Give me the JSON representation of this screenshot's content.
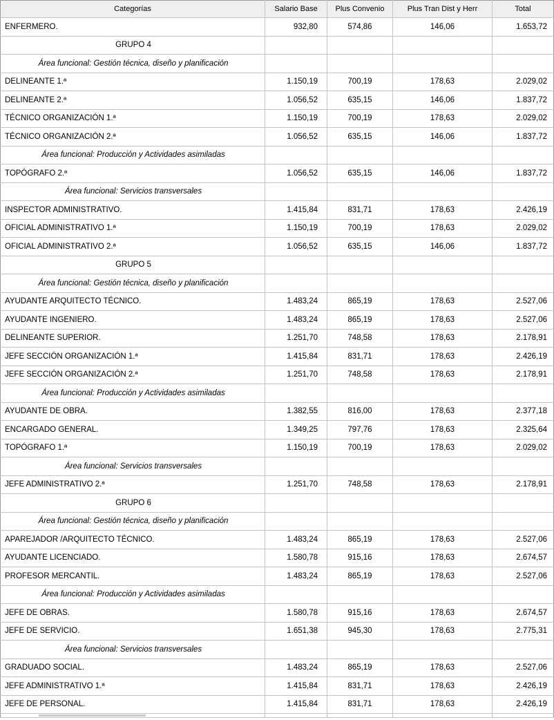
{
  "table": {
    "columns": [
      {
        "key": "category",
        "label": "Categorías"
      },
      {
        "key": "salario_base",
        "label": "Salario Base"
      },
      {
        "key": "plus_convenio",
        "label": "Plus Convenio"
      },
      {
        "key": "plus_tran",
        "label": "Plus Tran Dist y Herr"
      },
      {
        "key": "total",
        "label": "Total"
      }
    ],
    "rows": [
      {
        "type": "data",
        "category": "ENFERMERO.",
        "salario_base": "932,80",
        "plus_convenio": "574,86",
        "plus_tran": "146,06",
        "total": "1.653,72"
      },
      {
        "type": "group",
        "label": "GRUPO 4"
      },
      {
        "type": "area",
        "label": "Área funcional: Gestión técnica, diseño y planificación"
      },
      {
        "type": "data",
        "category": "DELINEANTE 1.ª",
        "salario_base": "1.150,19",
        "plus_convenio": "700,19",
        "plus_tran": "178,63",
        "total": "2.029,02"
      },
      {
        "type": "data",
        "category": "DELINEANTE 2.ª",
        "salario_base": "1.056,52",
        "plus_convenio": "635,15",
        "plus_tran": "146,06",
        "total": "1.837,72"
      },
      {
        "type": "data",
        "category": "TÉCNICO ORGANIZACIÓN 1.ª",
        "salario_base": "1.150,19",
        "plus_convenio": "700,19",
        "plus_tran": "178,63",
        "total": "2.029,02"
      },
      {
        "type": "data",
        "category": "TÉCNICO ORGANIZACIÓN 2.ª",
        "salario_base": "1.056,52",
        "plus_convenio": "635,15",
        "plus_tran": "146,06",
        "total": "1.837,72"
      },
      {
        "type": "area",
        "label": "Área funcional: Producción y Actividades asimiladas"
      },
      {
        "type": "data",
        "category": "TOPÓGRAFO 2.ª",
        "salario_base": "1.056,52",
        "plus_convenio": "635,15",
        "plus_tran": "146,06",
        "total": "1.837,72"
      },
      {
        "type": "area",
        "label": "Área funcional: Servicios transversales"
      },
      {
        "type": "data",
        "category": "INSPECTOR ADMINISTRATIVO.",
        "salario_base": "1.415,84",
        "plus_convenio": "831,71",
        "plus_tran": "178,63",
        "total": "2.426,19"
      },
      {
        "type": "data",
        "category": "OFICIAL ADMINISTRATIVO 1.ª",
        "salario_base": "1.150,19",
        "plus_convenio": "700,19",
        "plus_tran": "178,63",
        "total": "2.029,02"
      },
      {
        "type": "data",
        "category": "OFICIAL ADMINISTRATIVO 2.ª",
        "salario_base": "1.056,52",
        "plus_convenio": "635,15",
        "plus_tran": "146,06",
        "total": "1.837,72"
      },
      {
        "type": "group",
        "label": "GRUPO 5"
      },
      {
        "type": "area",
        "label": "Área funcional: Gestión técnica, diseño y planificación"
      },
      {
        "type": "data",
        "category": "AYUDANTE ARQUITECTO TÉCNICO.",
        "salario_base": "1.483,24",
        "plus_convenio": "865,19",
        "plus_tran": "178,63",
        "total": "2.527,06"
      },
      {
        "type": "data",
        "category": "AYUDANTE INGENIERO.",
        "salario_base": "1.483,24",
        "plus_convenio": "865,19",
        "plus_tran": "178,63",
        "total": "2.527,06"
      },
      {
        "type": "data",
        "category": "DELINEANTE SUPERIOR.",
        "salario_base": "1.251,70",
        "plus_convenio": "748,58",
        "plus_tran": "178,63",
        "total": "2.178,91"
      },
      {
        "type": "data",
        "category": "JEFE SECCIÓN ORGANIZACIÓN 1.ª",
        "salario_base": "1.415,84",
        "plus_convenio": "831,71",
        "plus_tran": "178,63",
        "total": "2.426,19"
      },
      {
        "type": "data",
        "category": "JEFE SECCIÓN ORGANIZACIÓN 2.ª",
        "salario_base": "1.251,70",
        "plus_convenio": "748,58",
        "plus_tran": "178,63",
        "total": "2.178,91"
      },
      {
        "type": "area",
        "label": "Área funcional: Producción y Actividades asimiladas"
      },
      {
        "type": "data",
        "category": "AYUDANTE DE OBRA.",
        "salario_base": "1.382,55",
        "plus_convenio": "816,00",
        "plus_tran": "178,63",
        "total": "2.377,18"
      },
      {
        "type": "data",
        "category": "ENCARGADO GENERAL.",
        "salario_base": "1.349,25",
        "plus_convenio": "797,76",
        "plus_tran": "178,63",
        "total": "2.325,64"
      },
      {
        "type": "data",
        "category": "TOPÓGRAFO 1.ª",
        "salario_base": "1.150,19",
        "plus_convenio": "700,19",
        "plus_tran": "178,63",
        "total": "2.029,02"
      },
      {
        "type": "area",
        "label": "Área funcional: Servicios transversales"
      },
      {
        "type": "data",
        "category": "JEFE ADMINISTRATIVO 2.ª",
        "salario_base": "1.251,70",
        "plus_convenio": "748,58",
        "plus_tran": "178,63",
        "total": "2.178,91"
      },
      {
        "type": "group",
        "label": "GRUPO 6"
      },
      {
        "type": "area",
        "label": "Área funcional: Gestión técnica, diseño y planificación"
      },
      {
        "type": "data",
        "category": "APAREJADOR /ARQUITECTO TÉCNICO.",
        "salario_base": "1.483,24",
        "plus_convenio": "865,19",
        "plus_tran": "178,63",
        "total": "2.527,06"
      },
      {
        "type": "data",
        "category": "AYUDANTE LICENCIADO.",
        "salario_base": "1.580,78",
        "plus_convenio": "915,16",
        "plus_tran": "178,63",
        "total": "2.674,57"
      },
      {
        "type": "data",
        "category": "PROFESOR MERCANTIL.",
        "salario_base": "1.483,24",
        "plus_convenio": "865,19",
        "plus_tran": "178,63",
        "total": "2.527,06"
      },
      {
        "type": "area",
        "label": "Área funcional: Producción y Actividades asimiladas"
      },
      {
        "type": "data",
        "category": "JEFE DE OBRAS.",
        "salario_base": "1.580,78",
        "plus_convenio": "915,16",
        "plus_tran": "178,63",
        "total": "2.674,57"
      },
      {
        "type": "data",
        "category": "JEFE DE SERVICIO.",
        "salario_base": "1.651,38",
        "plus_convenio": "945,30",
        "plus_tran": "178,63",
        "total": "2.775,31"
      },
      {
        "type": "area",
        "label": "Área funcional: Servicios transversales"
      },
      {
        "type": "data",
        "category": "GRADUADO SOCIAL.",
        "salario_base": "1.483,24",
        "plus_convenio": "865,19",
        "plus_tran": "178,63",
        "total": "2.527,06"
      },
      {
        "type": "data",
        "category": "JEFE ADMINISTRATIVO 1.ª",
        "salario_base": "1.415,84",
        "plus_convenio": "831,71",
        "plus_tran": "178,63",
        "total": "2.426,19"
      },
      {
        "type": "data",
        "category": "JEFE DE PERSONAL.",
        "salario_base": "1.415,84",
        "plus_convenio": "831,71",
        "plus_tran": "178,63",
        "total": "2.426,19"
      }
    ]
  },
  "colors": {
    "header_bg": "#efefef",
    "border_inner": "#c3c3c3",
    "border_outer": "#9a9a9a",
    "text": "#000000",
    "clipped_bar": "#c9c9c9"
  }
}
